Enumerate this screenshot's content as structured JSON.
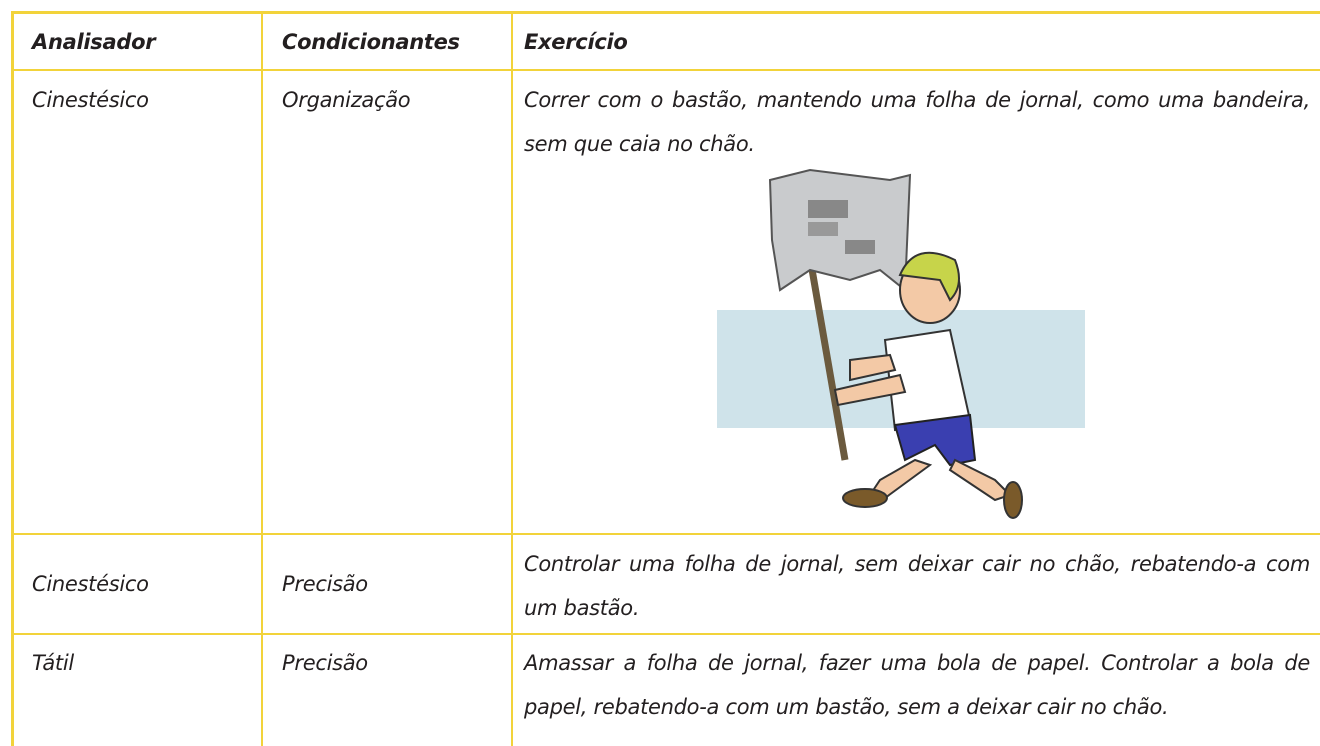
{
  "table": {
    "header": [
      "Analisador",
      "Condicionantes",
      "Exercício"
    ],
    "rows": [
      [
        "Cinestésico",
        "Organização",
        "Correr com o bastão, mantendo uma folha de jornal, como uma bandeira, sem que caia no chão."
      ],
      [
        "Cinestésico",
        "Precisão",
        "Controlar uma folha de jornal, sem deixar cair no chão, rebatendo-a com um bastão."
      ],
      [
        "Tátil",
        "Precisão",
        "Amassar a folha de jornal, fazer uma bola de papel. Controlar a bola de papel, rebatendo-a com um bastão, sem a deixar cair no chão."
      ]
    ]
  }
}
